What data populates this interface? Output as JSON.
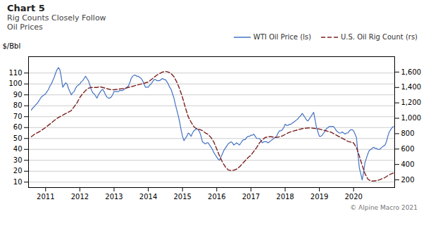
{
  "chart_data": {
    "type": "line",
    "title": "Chart 5",
    "subtitle": "Rig Counts Closely Follow\nOil Prices",
    "ylabel": "$/Bbl",
    "annotations": [
      "© Alpine Macro 2021"
    ],
    "xlim": [
      2010.5,
      2021.2
    ],
    "xticks": [
      2011,
      2012,
      2013,
      2014,
      2015,
      2016,
      2017,
      2018,
      2019,
      2020
    ],
    "ylim": [
      5,
      125
    ],
    "yticks": [
      10,
      20,
      30,
      40,
      50,
      60,
      70,
      80,
      90,
      100,
      110
    ],
    "y2lim": [
      100,
      1800
    ],
    "y2ticks": [
      200,
      400,
      600,
      800,
      {
        "value": 1000,
        "label": "1,000"
      },
      {
        "value": 1200,
        "label": "1,200"
      },
      {
        "value": 1400,
        "label": "1,400"
      },
      {
        "value": 1600,
        "label": "1,600"
      }
    ],
    "grid": true,
    "legend": "upper right",
    "series": [
      {
        "name": "WTI Oil Price (ls)",
        "color": "#4472c4",
        "line_style": "solid",
        "x": [
          2010.583,
          2010.625,
          2010.667,
          2010.708,
          2010.75,
          2010.792,
          2010.833,
          2010.875,
          2010.917,
          2010.958,
          2011.0,
          2011.042,
          2011.083,
          2011.125,
          2011.167,
          2011.208,
          2011.25,
          2011.292,
          2011.333,
          2011.375,
          2011.417,
          2011.458,
          2011.5,
          2011.542,
          2011.583,
          2011.625,
          2011.667,
          2011.708,
          2011.75,
          2011.792,
          2011.833,
          2011.875,
          2011.917,
          2011.958,
          2012.0,
          2012.042,
          2012.083,
          2012.125,
          2012.167,
          2012.208,
          2012.25,
          2012.292,
          2012.333,
          2012.375,
          2012.417,
          2012.458,
          2012.5,
          2012.542,
          2012.583,
          2012.625,
          2012.667,
          2012.708,
          2012.75,
          2012.792,
          2012.833,
          2012.875,
          2012.917,
          2012.958,
          2013.0,
          2013.042,
          2013.083,
          2013.125,
          2013.167,
          2013.208,
          2013.25,
          2013.292,
          2013.333,
          2013.375,
          2013.417,
          2013.458,
          2013.5,
          2013.542,
          2013.583,
          2013.625,
          2013.667,
          2013.708,
          2013.75,
          2013.792,
          2013.833,
          2013.875,
          2013.917,
          2013.958,
          2014.0,
          2014.042,
          2014.083,
          2014.125,
          2014.167,
          2014.208,
          2014.25,
          2014.292,
          2014.333,
          2014.375,
          2014.417,
          2014.458,
          2014.5,
          2014.542,
          2014.583,
          2014.625,
          2014.667,
          2014.708,
          2014.75,
          2014.792,
          2014.833,
          2014.875,
          2014.917,
          2014.958,
          2015.0,
          2015.042,
          2015.083,
          2015.125,
          2015.167,
          2015.208,
          2015.25,
          2015.292,
          2015.333,
          2015.375,
          2015.417,
          2015.458,
          2015.5,
          2015.542,
          2015.583,
          2015.625,
          2015.667,
          2015.708,
          2015.75,
          2015.792,
          2015.833,
          2015.875,
          2015.917,
          2015.958,
          2016.0,
          2016.042,
          2016.083,
          2016.125,
          2016.167,
          2016.208,
          2016.25,
          2016.292,
          2016.333,
          2016.375,
          2016.417,
          2016.458,
          2016.5,
          2016.542,
          2016.583,
          2016.625,
          2016.667,
          2016.708,
          2016.75,
          2016.792,
          2016.833,
          2016.875,
          2016.917,
          2016.958,
          2017.0,
          2017.042,
          2017.083,
          2017.125,
          2017.167,
          2017.208,
          2017.25,
          2017.292,
          2017.333,
          2017.375,
          2017.417,
          2017.458,
          2017.5,
          2017.542,
          2017.583,
          2017.625,
          2017.667,
          2017.708,
          2017.75,
          2017.792,
          2017.833,
          2017.875,
          2017.917,
          2017.958,
          2018.0,
          2018.042,
          2018.083,
          2018.125,
          2018.167,
          2018.208,
          2018.25,
          2018.292,
          2018.333,
          2018.375,
          2018.417,
          2018.458,
          2018.5,
          2018.542,
          2018.583,
          2018.625,
          2018.667,
          2018.708,
          2018.75,
          2018.792,
          2018.833,
          2018.875,
          2018.917,
          2018.958,
          2019.0,
          2019.042,
          2019.083,
          2019.125,
          2019.167,
          2019.208,
          2019.25,
          2019.292,
          2019.333,
          2019.375,
          2019.417,
          2019.458,
          2019.5,
          2019.542,
          2019.583,
          2019.625,
          2019.667,
          2019.708,
          2019.75,
          2019.792,
          2019.833,
          2019.875,
          2019.917,
          2019.958,
          2020.0,
          2020.042,
          2020.083,
          2020.125,
          2020.167,
          2020.208,
          2020.25,
          2020.292,
          2020.333,
          2020.375,
          2020.417,
          2020.458,
          2020.5,
          2020.542,
          2020.583,
          2020.625,
          2020.667,
          2020.708,
          2020.75,
          2020.792,
          2020.833,
          2020.875,
          2020.917,
          2020.958,
          2021.0,
          2021.042,
          2021.083,
          2021.125,
          2021.167
        ],
        "values": [
          76,
          78,
          79,
          81,
          82,
          84,
          86,
          88,
          89,
          90,
          91,
          93,
          95,
          98,
          100,
          103,
          106,
          110,
          113,
          115,
          113,
          106,
          97,
          99,
          101,
          100,
          96,
          93,
          90,
          92,
          93,
          96,
          98,
          99,
          100,
          102,
          103,
          105,
          107,
          105,
          103,
          99,
          95,
          92,
          91,
          89,
          87,
          90,
          92,
          94,
          95,
          93,
          90,
          88,
          87,
          87,
          88,
          90,
          93,
          93,
          93,
          93,
          94,
          94,
          94,
          95,
          96,
          97,
          98,
          101,
          105,
          107,
          108,
          108,
          107,
          107,
          106,
          105,
          103,
          100,
          97,
          97,
          97,
          99,
          100,
          102,
          104,
          104,
          103,
          103,
          103,
          104,
          105,
          104,
          104,
          102,
          100,
          97,
          95,
          91,
          87,
          81,
          76,
          71,
          65,
          58,
          52,
          48,
          50,
          52,
          55,
          54,
          52,
          55,
          57,
          58,
          59,
          58,
          56,
          52,
          47,
          46,
          45,
          46,
          46,
          44,
          42,
          40,
          37,
          35,
          33,
          31,
          30,
          33,
          36,
          39,
          41,
          43,
          45,
          46,
          47,
          46,
          44,
          45,
          46,
          45,
          44,
          46,
          48,
          49,
          49,
          51,
          52,
          52,
          53,
          53,
          54,
          52,
          50,
          50,
          50,
          48,
          46,
          47,
          47,
          47,
          46,
          47,
          48,
          49,
          50,
          51,
          52,
          55,
          57,
          57,
          58,
          60,
          63,
          62,
          62,
          63,
          63,
          64,
          65,
          66,
          67,
          68,
          70,
          71,
          73,
          71,
          69,
          67,
          66,
          68,
          70,
          72,
          74,
          67,
          60,
          56,
          52,
          52,
          53,
          55,
          57,
          59,
          60,
          61,
          61,
          61,
          61,
          59,
          57,
          56,
          55,
          55,
          56,
          55,
          54,
          55,
          55,
          57,
          58,
          58,
          57,
          54,
          51,
          37,
          23,
          18,
          12,
          19,
          28,
          32,
          36,
          39,
          40,
          41,
          42,
          41,
          41,
          40,
          40,
          41,
          42,
          43,
          44,
          47,
          52,
          56,
          58,
          60,
          61
        ]
      },
      {
        "name": "U.S. Oil Rig Count (rs)",
        "color": "#7b2020",
        "line_style": "dashed",
        "axis": "y2",
        "x": [
          2010.583,
          2010.667,
          2010.75,
          2010.833,
          2010.917,
          2011.0,
          2011.083,
          2011.167,
          2011.25,
          2011.333,
          2011.417,
          2011.5,
          2011.583,
          2011.667,
          2011.75,
          2011.833,
          2011.917,
          2012.0,
          2012.083,
          2012.167,
          2012.25,
          2012.333,
          2012.417,
          2012.5,
          2012.583,
          2012.667,
          2012.75,
          2012.833,
          2012.917,
          2013.0,
          2013.083,
          2013.167,
          2013.25,
          2013.333,
          2013.417,
          2013.5,
          2013.583,
          2013.667,
          2013.75,
          2013.833,
          2013.917,
          2014.0,
          2014.083,
          2014.167,
          2014.25,
          2014.333,
          2014.417,
          2014.5,
          2014.583,
          2014.667,
          2014.75,
          2014.833,
          2014.917,
          2015.0,
          2015.083,
          2015.167,
          2015.25,
          2015.333,
          2015.417,
          2015.5,
          2015.583,
          2015.667,
          2015.75,
          2015.833,
          2015.917,
          2016.0,
          2016.083,
          2016.167,
          2016.25,
          2016.333,
          2016.417,
          2016.5,
          2016.583,
          2016.667,
          2016.75,
          2016.833,
          2016.917,
          2017.0,
          2017.083,
          2017.167,
          2017.25,
          2017.333,
          2017.417,
          2017.5,
          2017.583,
          2017.667,
          2017.75,
          2017.833,
          2017.917,
          2018.0,
          2018.083,
          2018.167,
          2018.25,
          2018.333,
          2018.417,
          2018.5,
          2018.583,
          2018.667,
          2018.75,
          2018.833,
          2018.917,
          2019.0,
          2019.083,
          2019.167,
          2019.25,
          2019.333,
          2019.417,
          2019.5,
          2019.583,
          2019.667,
          2019.75,
          2019.833,
          2019.917,
          2020.0,
          2020.083,
          2020.167,
          2020.25,
          2020.333,
          2020.417,
          2020.5,
          2020.583,
          2020.667,
          2020.75,
          2020.833,
          2020.917,
          2021.0,
          2021.083,
          2021.167
        ],
        "values": [
          760,
          790,
          810,
          830,
          855,
          880,
          910,
          940,
          970,
          1000,
          1020,
          1040,
          1060,
          1080,
          1100,
          1150,
          1200,
          1270,
          1320,
          1360,
          1390,
          1400,
          1400,
          1400,
          1410,
          1400,
          1390,
          1380,
          1370,
          1370,
          1375,
          1380,
          1385,
          1390,
          1400,
          1410,
          1420,
          1430,
          1440,
          1450,
          1460,
          1470,
          1500,
          1530,
          1560,
          1580,
          1600,
          1610,
          1600,
          1580,
          1540,
          1470,
          1380,
          1270,
          1140,
          1020,
          950,
          890,
          860,
          855,
          840,
          810,
          790,
          750,
          690,
          600,
          510,
          430,
          370,
          330,
          320,
          325,
          340,
          370,
          410,
          450,
          490,
          520,
          570,
          620,
          680,
          720,
          750,
          760,
          760,
          755,
          750,
          760,
          770,
          790,
          810,
          825,
          835,
          845,
          855,
          865,
          870,
          875,
          875,
          870,
          865,
          860,
          850,
          840,
          830,
          820,
          800,
          780,
          760,
          740,
          720,
          700,
          690,
          680,
          620,
          510,
          390,
          280,
          210,
          185,
          185,
          190,
          200,
          215,
          230,
          255,
          275,
          290
        ]
      }
    ]
  }
}
